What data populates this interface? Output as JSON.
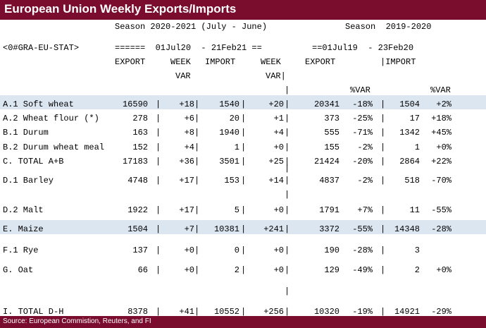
{
  "title": "European Union Weekly Exports/Imports",
  "header": {
    "season_current": "Season 2020-2021 (July - June)",
    "season_prev": "Season  2019-2020",
    "ric": "<0#GRA-EU-STAT>",
    "dates_current": "======  01Jul20  - 21Feb21 ==",
    "dates_prev": "==01Jul19  - 23Feb20",
    "col_export": "EXPORT",
    "col_week": "WEEK",
    "col_import": "IMPORT",
    "col_week2": "WEEK",
    "col_export_prev": "EXPORT",
    "col_import_prev": "|IMPORT",
    "var1": "VAR",
    "var2": "VAR|",
    "pct_var1": "%VAR",
    "pct_var2": "%VAR"
  },
  "rows": [
    {
      "label": "A.1 Soft wheat",
      "export": "16590",
      "week_var": "+18",
      "import": "1540",
      "week_var2": "+20",
      "export_prev": "20341",
      "pct1": "-18%",
      "import_prev": "1504",
      "pct2": "+2%"
    },
    {
      "label": "A.2 Wheat flour (*)",
      "export": "278",
      "week_var": "+6",
      "import": "20",
      "week_var2": "+1",
      "export_prev": "373",
      "pct1": "-25%",
      "import_prev": "17",
      "pct2": "+18%"
    },
    {
      "label": "B.1 Durum",
      "export": "163",
      "week_var": "+8",
      "import": "1940",
      "week_var2": "+4",
      "export_prev": "555",
      "pct1": "-71%",
      "import_prev": "1342",
      "pct2": "+45%"
    },
    {
      "label": "B.2 Durum wheat meal",
      "export": "152",
      "week_var": "+4",
      "import": "1",
      "week_var2": "+0",
      "export_prev": "155",
      "pct1": "-2%",
      "import_prev": "1",
      "pct2": "+0%"
    },
    {
      "label": "C. TOTAL A+B",
      "export": "17183",
      "week_var": "+36",
      "import": "3501",
      "week_var2": "+25",
      "export_prev": "21424",
      "pct1": "-20%",
      "import_prev": "2864",
      "pct2": "+22%"
    },
    {
      "label": "D.1 Barley",
      "export": "4748",
      "week_var": "+17",
      "import": "153",
      "week_var2": "+14",
      "export_prev": "4837",
      "pct1": "-2%",
      "import_prev": "518",
      "pct2": "-70%"
    },
    {
      "label": "D.2 Malt",
      "export": "1922",
      "week_var": "+17",
      "import": "5",
      "week_var2": "+0",
      "export_prev": "1791",
      "pct1": "+7%",
      "import_prev": "11",
      "pct2": "-55%"
    },
    {
      "label": "E. Maize",
      "export": "1504",
      "week_var": "+7",
      "import": "10381",
      "week_var2": "+241",
      "export_prev": "3372",
      "pct1": "-55%",
      "import_prev": "14348",
      "pct2": "-28%"
    },
    {
      "label": "F.1 Rye",
      "export": "137",
      "week_var": "+0",
      "import": "0",
      "week_var2": "+0",
      "export_prev": "190",
      "pct1": "-28%",
      "import_prev": "3",
      "pct2": ""
    },
    {
      "label": "G. Oat",
      "export": "66",
      "week_var": "+0",
      "import": "2",
      "week_var2": "+0",
      "export_prev": "129",
      "pct1": "-49%",
      "import_prev": "2",
      "pct2": "+0%"
    },
    {
      "label": "I. TOTAL D-H",
      "export": "8378",
      "week_var": "+41",
      "import": "10552",
      "week_var2": "+256",
      "export_prev": "10320",
      "pct1": "-19%",
      "import_prev": "14921",
      "pct2": "-29%"
    }
  ],
  "footer": "Source: European Commistion, Reuters, and FI"
}
